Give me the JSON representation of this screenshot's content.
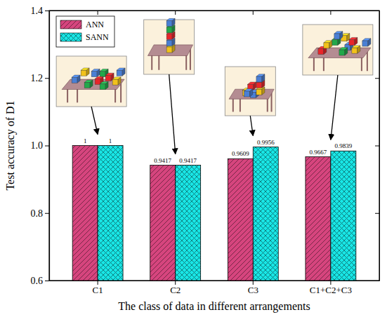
{
  "chart_data": {
    "type": "bar",
    "y_label": "Test accuracy of D1",
    "x_label": "The class of data in different arrangements",
    "categories": [
      "C1",
      "C2",
      "C3",
      "C1+C2+C3"
    ],
    "series": [
      {
        "name": "ANN",
        "color": "#d6457e",
        "values": [
          1,
          0.9417,
          0.9609,
          0.9667
        ]
      },
      {
        "name": "SANN",
        "color": "#19e6e6",
        "values": [
          1,
          0.9417,
          0.9956,
          0.9839
        ]
      }
    ],
    "ylim": [
      0.6,
      1.4
    ],
    "yticks": [
      0.6,
      0.8,
      {
        "value": 1,
        "label": "1.0"
      },
      1.2,
      1.4
    ],
    "data_labels": true,
    "legend": "upper left",
    "grid": false
  }
}
